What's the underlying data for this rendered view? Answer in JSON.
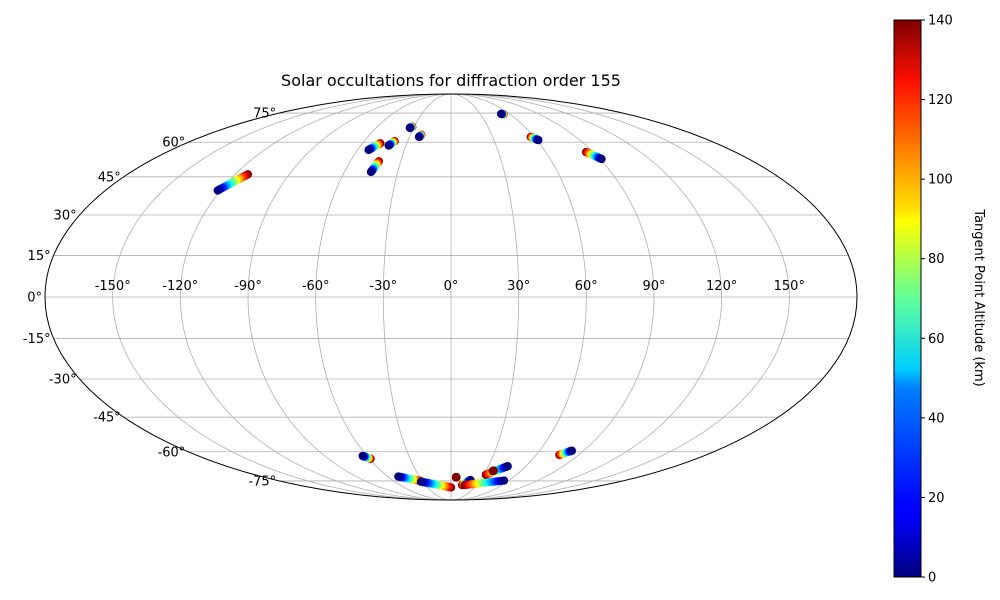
{
  "chart_data": {
    "type": "scatter",
    "projection": "mollweide",
    "title": "Solar occultations for diffraction order 155",
    "grid": true,
    "lon_ticks": [
      -150,
      -120,
      -90,
      -60,
      -30,
      0,
      30,
      60,
      90,
      120,
      150
    ],
    "lat_ticks": [
      -75,
      -60,
      -45,
      -30,
      -15,
      0,
      15,
      30,
      45,
      60,
      75
    ],
    "lon_tick_labels": [
      "-150°",
      "-120°",
      "-90°",
      "-60°",
      "-30°",
      "0°",
      "30°",
      "60°",
      "90°",
      "120°",
      "150°"
    ],
    "lat_tick_labels": [
      "-75°",
      "-60°",
      "-45°",
      "-30°",
      "-15°",
      "0°",
      "15°",
      "30°",
      "45°",
      "60°",
      "75°"
    ],
    "colorbar": {
      "label": "Tangent Point Altitude (km)",
      "range": [
        0,
        140
      ],
      "ticks": [
        0,
        20,
        40,
        60,
        80,
        100,
        120,
        140
      ],
      "tick_labels": [
        "0",
        "20",
        "40",
        "60",
        "80",
        "100",
        "120",
        "140"
      ],
      "colormap": "jet"
    },
    "tracks": [
      {
        "lon_start": -121.5,
        "lat_start": 39.5,
        "lon_end": -113,
        "lat_end": 46,
        "alt_start": 0,
        "alt_end": 140
      },
      {
        "lon_start": -53,
        "lat_start": 56.5,
        "lon_end": -48,
        "lat_end": 59.5,
        "alt_start": 0,
        "alt_end": 140
      },
      {
        "lon_start": -45,
        "lat_start": 47,
        "lon_end": -43,
        "lat_end": 51.5,
        "alt_start": 0,
        "alt_end": 140
      },
      {
        "lon_start": -41.5,
        "lat_start": 58.5,
        "lon_end": -39,
        "lat_end": 60.5,
        "alt_start": 0,
        "alt_end": 140
      },
      {
        "lon_start": -33,
        "lat_start": 67,
        "lon_end": -31.5,
        "lat_end": 67.5,
        "alt_start": 0,
        "alt_end": 140
      },
      {
        "lon_start": -23,
        "lat_start": 62.5,
        "lon_end": -22,
        "lat_end": 63.5,
        "alt_start": 0,
        "alt_end": 140
      },
      {
        "lon_start": 51.5,
        "lat_start": 74.5,
        "lon_end": 53.5,
        "lat_end": 74.3,
        "alt_start": 0,
        "alt_end": 140
      },
      {
        "lon_start": 61,
        "lat_start": 61,
        "lon_end": 57.5,
        "lat_end": 62.5,
        "alt_start": 0,
        "alt_end": 140
      },
      {
        "lon_start": 91,
        "lat_start": 52.5,
        "lon_end": 85.5,
        "lat_end": 55.5,
        "alt_start": 0,
        "alt_end": 140
      },
      {
        "lon_start": -63,
        "lat_start": -62,
        "lon_end": -59,
        "lat_end": -63.3,
        "alt_start": 0,
        "alt_end": 140
      },
      {
        "lon_start": -50,
        "lat_start": -72.5,
        "lon_end": -32,
        "lat_end": -75,
        "alt_start": 0,
        "alt_end": 140
      },
      {
        "lon_start": -32,
        "lat_start": -75.5,
        "lon_end": 0,
        "lat_end": -79,
        "alt_start": 0,
        "alt_end": 140
      },
      {
        "lon_start": 5,
        "lat_start": -73,
        "lon_end": 5,
        "lat_end": -72.8,
        "alt_start": 140,
        "alt_end": 140
      },
      {
        "lon_start": 20,
        "lat_start": -74.5,
        "lon_end": 13,
        "lat_end": -77.5,
        "alt_start": 0,
        "alt_end": 140
      },
      {
        "lon_start": 55,
        "lat_start": -74.8,
        "lon_end": 16,
        "lat_end": -77.5,
        "alt_start": 0,
        "alt_end": 140
      },
      {
        "lon_start": 45.5,
        "lat_start": -67,
        "lon_end": 32,
        "lat_end": -71.5,
        "alt_start": 0,
        "alt_end": 140
      },
      {
        "lon_start": 36,
        "lat_start": -69.5,
        "lon_end": 36.5,
        "lat_end": -69.3,
        "alt_start": 140,
        "alt_end": 140
      },
      {
        "lon_start": 82,
        "lat_start": -59.5,
        "lon_end": 76.5,
        "lat_end": -61.5,
        "alt_start": 0,
        "alt_end": 140
      }
    ]
  }
}
